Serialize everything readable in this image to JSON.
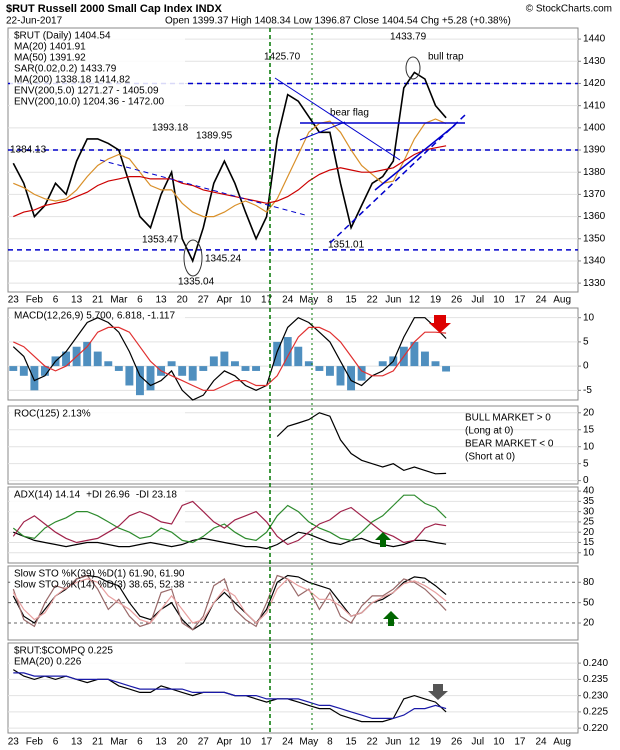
{
  "chart_data": [
    {
      "type": "line",
      "title": "$RUT Russell 2000 Small Cap Index INDX",
      "subtitle": "22-Jun-2017",
      "ohlc_text": "Open 1399.37  High 1408.34  Low 1396.87  Close 1404.54  Chg +5.28 (+0.38%)",
      "credit": "© StockCharts.com",
      "categories": [
        "23",
        null,
        "Feb",
        null,
        "6",
        null,
        "13",
        null,
        "21",
        null,
        "Mar",
        null,
        "6",
        null,
        "13",
        null,
        "20",
        null,
        "27",
        null,
        "Apr",
        null,
        "10",
        null,
        "17",
        null,
        "24",
        null,
        "May",
        null,
        "8",
        null,
        "15",
        null,
        "22",
        null,
        "Jun",
        null,
        "12",
        null,
        "19",
        null,
        "26",
        null,
        "Jul",
        null,
        "10",
        null,
        "17",
        null,
        "24",
        null,
        "Aug",
        null
      ],
      "ylim": [
        1326,
        1445
      ],
      "yticks": [
        1330,
        1340,
        1350,
        1360,
        1370,
        1380,
        1390,
        1400,
        1410,
        1420,
        1430,
        1440
      ],
      "grid": true,
      "hlines": [
        1420,
        1390,
        1345
      ],
      "hline_color": "#0000cc",
      "series": [
        {
          "name": "$RUT (Daily) 1404.54",
          "color": "#000000",
          "values": [
            1384,
            1375,
            1360,
            1365,
            1375,
            1370,
            1385,
            1395,
            1395,
            1393,
            1390,
            1375,
            1360,
            1355,
            1370,
            1380,
            1350,
            1340,
            1355,
            1375,
            1385,
            1375,
            1362,
            1350,
            1360,
            1395,
            1415,
            1412,
            1405,
            1398,
            1398,
            1375,
            1355,
            1365,
            1375,
            1378,
            1385,
            1418,
            1425,
            1422,
            1410,
            1404.54,
            null,
            null,
            null,
            null,
            null,
            null,
            null,
            null,
            null,
            null,
            null,
            null
          ]
        },
        {
          "name": "MA(20) 1401.91",
          "color": "#d9902a",
          "values": [
            1375,
            1373,
            1370,
            1368,
            1367,
            1368,
            1372,
            1378,
            1383,
            1386,
            1388,
            1386,
            1380,
            1374,
            1372,
            1372,
            1366,
            1362,
            1360,
            1360,
            1362,
            1365,
            1367,
            1365,
            1362,
            1368,
            1378,
            1388,
            1398,
            1402,
            1403,
            1398,
            1390,
            1383,
            1379,
            1375,
            1376,
            1385,
            1395,
            1402,
            1404,
            1401.91,
            null,
            null,
            null,
            null,
            null,
            null,
            null,
            null,
            null,
            null,
            null,
            null
          ]
        },
        {
          "name": "MA(50) 1391.92",
          "color": "#cc0000",
          "values": [
            1360,
            1362,
            1363,
            1365,
            1366,
            1367,
            1369,
            1371,
            1374,
            1376,
            1377,
            1378,
            1378,
            1377,
            1377,
            1377,
            1375,
            1374,
            1372,
            1371,
            1370,
            1369,
            1368,
            1367,
            1366,
            1367,
            1369,
            1372,
            1376,
            1379,
            1381,
            1382,
            1381,
            1380,
            1380,
            1381,
            1382,
            1385,
            1388,
            1390,
            1391,
            1391.92,
            null,
            null,
            null,
            null,
            null,
            null,
            null,
            null,
            null,
            null,
            null,
            null
          ]
        }
      ],
      "legend_notes": [
        "SAR(0.02,0.2) 1433.79",
        "MA(200) 1338.18 1414.82",
        "ENV(200,5.0) 1271.27 - 1405.09",
        "ENV(200,10.0) 1204.36 - 1472.00"
      ],
      "annotations": [
        "1384.13",
        "1393.18",
        "1389.95",
        "1353.47",
        "1335.04",
        "1345.24",
        "1425.70",
        "1433.79",
        "1351.01",
        "bull trap",
        "bear flag"
      ]
    },
    {
      "type": "line",
      "title": "MACD(12,26,9) 5.700, 6.818, -1.117",
      "ylim": [
        -7,
        12
      ],
      "yticks": [
        -5,
        0,
        5,
        10
      ],
      "grid": true,
      "series": [
        {
          "color": "#4f8fbf",
          "style": "bars",
          "values": [
            -1,
            -2,
            -5,
            -2,
            2,
            3,
            4,
            5,
            3,
            1,
            -1,
            -4,
            -6,
            -5,
            -2,
            1,
            -2,
            -3,
            -1,
            2,
            3,
            1,
            -1,
            -1,
            0,
            5,
            6,
            4,
            1,
            -1,
            -2,
            -4,
            -5,
            -3,
            0,
            1,
            2,
            4,
            5,
            3,
            1,
            -1.117,
            null,
            null,
            null,
            null,
            null,
            null,
            null,
            null,
            null,
            null,
            null,
            null
          ]
        },
        {
          "color": "#000000",
          "values": [
            4,
            2,
            -3,
            -2,
            1,
            3,
            6,
            9,
            10,
            9,
            7,
            3,
            -2,
            -4,
            -3,
            -1,
            -5,
            -7,
            -6,
            -3,
            -1,
            -2,
            -4,
            -5,
            -4,
            3,
            8,
            10,
            9,
            7,
            5,
            1,
            -3,
            -4,
            -2,
            -1,
            1,
            6,
            10,
            10,
            8,
            5.7,
            null,
            null,
            null,
            null,
            null,
            null,
            null,
            null,
            null,
            null,
            null,
            null
          ]
        },
        {
          "color": "#e03030",
          "values": [
            5,
            4,
            2,
            0,
            -1,
            0,
            2,
            4,
            7,
            8,
            8,
            7,
            4,
            1,
            -1,
            -2,
            -3,
            -4,
            -5,
            -5,
            -4,
            -3,
            -3,
            -4,
            -4,
            -2,
            2,
            6,
            8,
            8,
            7,
            5,
            2,
            -1,
            -2,
            -2,
            -1,
            2,
            5,
            7,
            7,
            6.818,
            null,
            null,
            null,
            null,
            null,
            null,
            null,
            null,
            null,
            null,
            null,
            null
          ]
        }
      ]
    },
    {
      "type": "line",
      "ylim": [
        -1,
        22
      ],
      "yticks": [
        0,
        5,
        10,
        15,
        20
      ],
      "grid": true,
      "series": [
        {
          "name": "ROC(125) 2.13%",
          "color": "#000000",
          "values": [
            null,
            null,
            null,
            null,
            null,
            null,
            null,
            null,
            null,
            null,
            null,
            null,
            null,
            null,
            null,
            null,
            null,
            null,
            null,
            null,
            null,
            null,
            null,
            null,
            null,
            13,
            16,
            17,
            18,
            20,
            19,
            12,
            8,
            6,
            5,
            4,
            5,
            3,
            4,
            3,
            2,
            2.13,
            null,
            null,
            null,
            null,
            null,
            null,
            null,
            null,
            null,
            null,
            null,
            null
          ]
        }
      ],
      "notes": [
        {
          "text": "BULL MARKET > 0",
          "color": "#008000"
        },
        {
          "text": "(Long at 0)",
          "color": "#008000"
        },
        {
          "text": "BEAR MARKET < 0",
          "color": "#cc0000"
        },
        {
          "text": "(Short at 0)",
          "color": "#cc0000"
        }
      ]
    },
    {
      "type": "line",
      "ylim": [
        5,
        42
      ],
      "yticks": [
        10,
        15,
        20,
        25,
        30,
        35,
        40
      ],
      "grid": true,
      "series": [
        {
          "name": "ADX(14) 14.14",
          "color": "#000000",
          "values": [
            20,
            18,
            16,
            15,
            14,
            13,
            14,
            15,
            15,
            14,
            13,
            13,
            14,
            15,
            14,
            13,
            14,
            16,
            17,
            16,
            15,
            14,
            13,
            13,
            12,
            14,
            17,
            20,
            19,
            17,
            15,
            14,
            16,
            17,
            15,
            14,
            13,
            14,
            16,
            16,
            15,
            14.14,
            null,
            null,
            null,
            null,
            null,
            null,
            null,
            null,
            null,
            null,
            null,
            null
          ]
        },
        {
          "name": "+DI 26.96",
          "color": "#2e8b2e",
          "values": [
            22,
            18,
            17,
            22,
            25,
            27,
            30,
            30,
            28,
            25,
            22,
            20,
            17,
            18,
            22,
            20,
            16,
            15,
            18,
            22,
            24,
            20,
            17,
            16,
            20,
            28,
            33,
            30,
            25,
            22,
            20,
            17,
            16,
            20,
            25,
            28,
            33,
            38,
            38,
            34,
            32,
            26.96,
            null,
            null,
            null,
            null,
            null,
            null,
            null,
            null,
            null,
            null,
            null,
            null
          ]
        },
        {
          "name": "-DI 23.18",
          "color": "#a0224a",
          "values": [
            18,
            25,
            28,
            24,
            20,
            17,
            15,
            16,
            17,
            20,
            23,
            28,
            30,
            28,
            25,
            24,
            33,
            35,
            30,
            25,
            22,
            26,
            28,
            30,
            25,
            18,
            14,
            16,
            20,
            24,
            26,
            30,
            32,
            28,
            24,
            20,
            18,
            15,
            16,
            22,
            24,
            23.18,
            null,
            null,
            null,
            null,
            null,
            null,
            null,
            null,
            null,
            null,
            null,
            null
          ]
        }
      ]
    },
    {
      "type": "line",
      "ylim": [
        -5,
        104
      ],
      "yticks": [
        20,
        50,
        80
      ],
      "grid": true,
      "series": [
        {
          "name": "Slow STO %K(39) %D(1) 61.90, 61.90",
          "color": "#000000",
          "values": [
            60,
            30,
            20,
            40,
            60,
            70,
            85,
            90,
            88,
            80,
            75,
            50,
            30,
            25,
            40,
            50,
            25,
            10,
            20,
            50,
            65,
            50,
            35,
            20,
            40,
            80,
            90,
            88,
            80,
            75,
            70,
            50,
            30,
            35,
            50,
            55,
            65,
            80,
            88,
            86,
            75,
            61.9,
            null,
            null,
            null,
            null,
            null,
            null,
            null,
            null,
            null,
            null,
            null,
            null
          ]
        },
        {
          "name": "Slow STO %K(14) %D(3) 38.65, 52.38",
          "color": "#9a6a6a",
          "values": [
            70,
            25,
            15,
            50,
            75,
            70,
            85,
            90,
            70,
            40,
            55,
            30,
            15,
            20,
            65,
            70,
            20,
            10,
            30,
            75,
            85,
            40,
            25,
            15,
            50,
            90,
            85,
            60,
            70,
            40,
            65,
            30,
            20,
            45,
            60,
            60,
            70,
            85,
            80,
            70,
            55,
            38.65,
            null,
            null,
            null,
            null,
            null,
            null,
            null,
            null,
            null,
            null,
            null,
            null
          ]
        },
        {
          "color": "#e8a0a0",
          "values": [
            65,
            40,
            25,
            35,
            60,
            72,
            80,
            85,
            80,
            60,
            50,
            40,
            25,
            20,
            40,
            60,
            40,
            20,
            25,
            50,
            70,
            60,
            35,
            20,
            35,
            70,
            85,
            75,
            68,
            55,
            55,
            45,
            30,
            35,
            50,
            58,
            65,
            78,
            82,
            75,
            65,
            52.38,
            null,
            null,
            null,
            null,
            null,
            null,
            null,
            null,
            null,
            null,
            null,
            null
          ]
        }
      ]
    },
    {
      "type": "line",
      "categories": [
        "23",
        null,
        "Feb",
        null,
        "6",
        null,
        "13",
        null,
        "21",
        null,
        "Mar",
        null,
        "6",
        null,
        "13",
        null,
        "20",
        null,
        "27",
        null,
        "Apr",
        null,
        "10",
        null,
        "17",
        null,
        "24",
        null,
        "May",
        null,
        "8",
        null,
        "15",
        null,
        "22",
        null,
        "Jun",
        null,
        "12",
        null,
        "19",
        null,
        "26",
        null,
        "Jul",
        null,
        "10",
        null,
        "17",
        null,
        "24",
        null,
        "Aug",
        null
      ],
      "ylim": [
        0.2185,
        0.2462
      ],
      "yticks": [
        {
          "value": 0.22,
          "label": "0.220"
        },
        0.225,
        {
          "value": 0.23,
          "label": "0.230"
        },
        0.235,
        {
          "value": 0.24,
          "label": "0.240"
        }
      ],
      "grid": true,
      "series": [
        {
          "name": "$RUT:$COMPQ 0.225",
          "color": "#000000",
          "values": [
            0.238,
            0.236,
            0.235,
            0.236,
            0.235,
            0.236,
            0.235,
            0.234,
            0.235,
            0.235,
            0.233,
            0.232,
            0.231,
            0.231,
            0.233,
            0.232,
            0.231,
            0.23,
            0.231,
            0.231,
            0.231,
            0.23,
            0.23,
            0.229,
            0.228,
            0.229,
            0.229,
            0.228,
            0.227,
            0.226,
            0.226,
            0.224,
            0.223,
            0.222,
            0.222,
            0.222,
            0.223,
            0.229,
            0.23,
            0.229,
            0.228,
            0.225,
            null,
            null,
            null,
            null,
            null,
            null,
            null,
            null,
            null,
            null,
            null,
            null
          ]
        },
        {
          "name": "EMA(20) 0.226",
          "color": "#1a1aa8",
          "values": [
            0.237,
            0.237,
            0.236,
            0.236,
            0.236,
            0.236,
            0.235,
            0.235,
            0.235,
            0.235,
            0.234,
            0.233,
            0.232,
            0.232,
            0.232,
            0.232,
            0.232,
            0.231,
            0.231,
            0.231,
            0.231,
            0.23,
            0.23,
            0.23,
            0.229,
            0.229,
            0.229,
            0.229,
            0.228,
            0.227,
            0.227,
            0.226,
            0.225,
            0.224,
            0.223,
            0.223,
            0.223,
            0.224,
            0.226,
            0.226,
            0.227,
            0.226,
            null,
            null,
            null,
            null,
            null,
            null,
            null,
            null,
            null,
            null,
            null,
            null
          ]
        }
      ]
    }
  ]
}
